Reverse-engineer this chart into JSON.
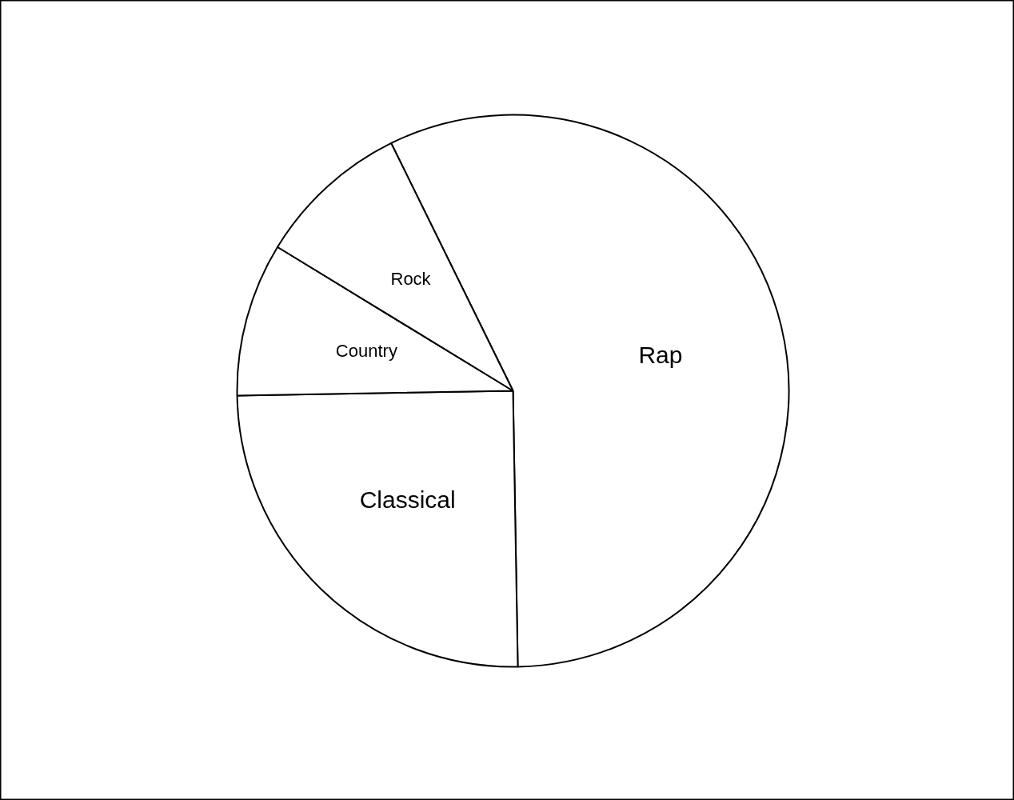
{
  "chart_data": {
    "type": "pie",
    "categories": [
      "Rap",
      "Classical",
      "Country",
      "Rock"
    ],
    "values": [
      57,
      25,
      9,
      9
    ],
    "colors": [
      "#ffffff",
      "#ffffff",
      "#ffffff",
      "#ffffff"
    ]
  }
}
